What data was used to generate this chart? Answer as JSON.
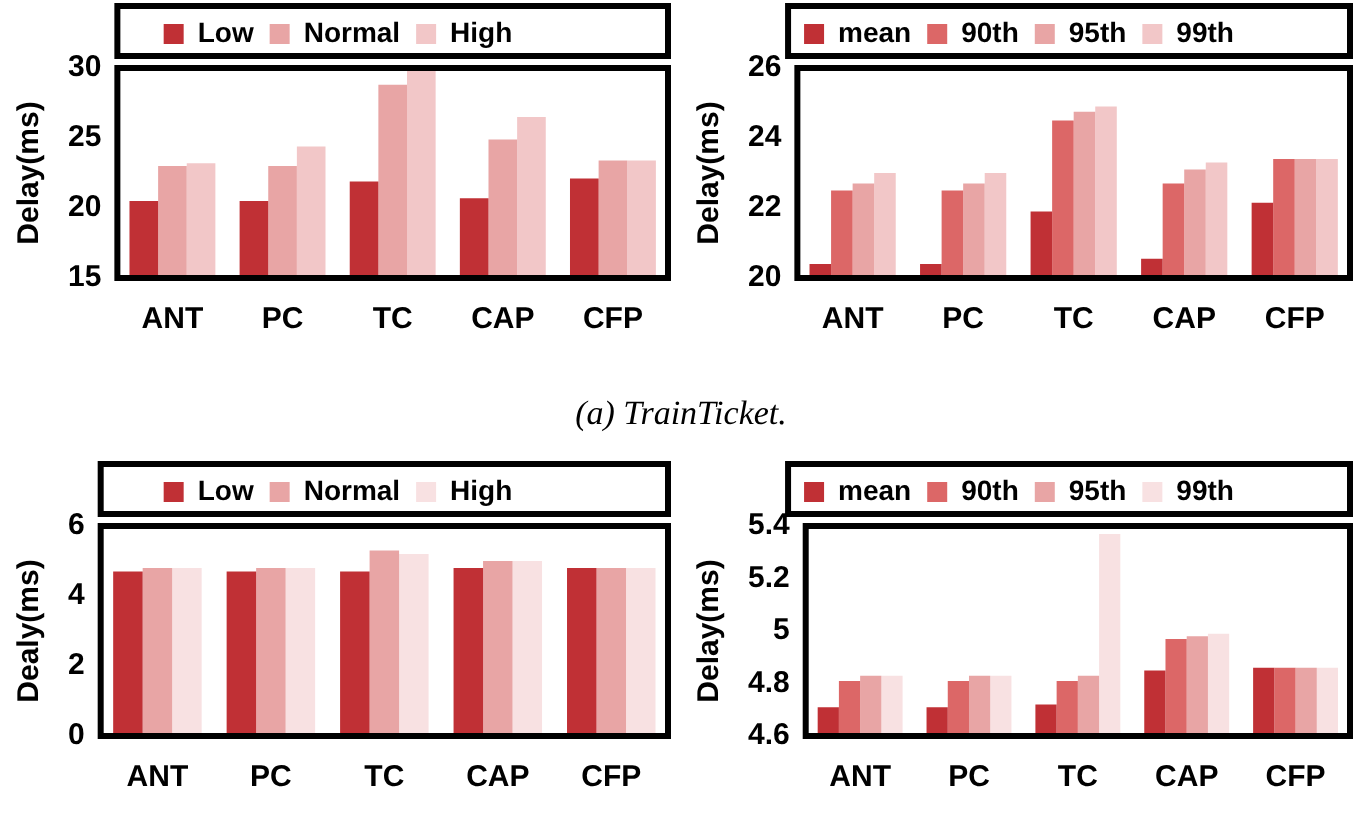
{
  "chart_data": [
    {
      "type": "bar",
      "ylabel": "Delay(ms)",
      "categories": [
        "ANT",
        "PC",
        "TC",
        "CAP",
        "CFP"
      ],
      "legend": "top",
      "ylim": [
        15,
        30
      ],
      "yticks": [
        15,
        20,
        25,
        30
      ],
      "annotations": [
        "(a) TrainTicket."
      ],
      "series": [
        {
          "name": "Low",
          "color": "#c03035",
          "values": [
            20.5,
            20.5,
            21.9,
            20.7,
            22.1
          ]
        },
        {
          "name": "Normal",
          "color": "#e8a5a5",
          "values": [
            23.0,
            23.0,
            28.8,
            24.9,
            23.4
          ]
        },
        {
          "name": "High",
          "color": "#f2c7c8",
          "values": [
            23.2,
            24.4,
            30.0,
            26.5,
            23.4
          ]
        }
      ]
    },
    {
      "type": "bar",
      "ylabel": "Delay(ms)",
      "categories": [
        "ANT",
        "PC",
        "TC",
        "CAP",
        "CFP"
      ],
      "legend": "top",
      "ylim": [
        20,
        26
      ],
      "yticks": [
        20,
        22,
        24,
        26
      ],
      "series": [
        {
          "name": "mean",
          "color": "#c03035",
          "values": [
            20.4,
            20.4,
            21.9,
            20.55,
            22.15
          ]
        },
        {
          "name": "90th",
          "color": "#dc6767",
          "values": [
            22.5,
            22.5,
            24.5,
            22.7,
            23.4
          ]
        },
        {
          "name": "95th",
          "color": "#e8a5a5",
          "values": [
            22.7,
            22.7,
            24.75,
            23.1,
            23.4
          ]
        },
        {
          "name": "99th",
          "color": "#f2c7c8",
          "values": [
            23.0,
            23.0,
            24.9,
            23.3,
            23.4
          ]
        }
      ]
    },
    {
      "type": "bar",
      "ylabel": "Dealy(ms)",
      "categories": [
        "ANT",
        "PC",
        "TC",
        "CAP",
        "CFP"
      ],
      "legend": "top",
      "ylim": [
        0,
        6
      ],
      "yticks": [
        0,
        2,
        4,
        6
      ],
      "series": [
        {
          "name": "Low",
          "color": "#c03035",
          "values": [
            4.7,
            4.7,
            4.7,
            4.8,
            4.8
          ]
        },
        {
          "name": "Normal",
          "color": "#e8a5a5",
          "values": [
            4.8,
            4.8,
            5.3,
            5.0,
            4.8
          ]
        },
        {
          "name": "High",
          "color": "#f8e1e2",
          "values": [
            4.8,
            4.8,
            5.2,
            5.0,
            4.8
          ]
        }
      ]
    },
    {
      "type": "bar",
      "ylabel": "Delay(ms)",
      "categories": [
        "ANT",
        "PC",
        "TC",
        "CAP",
        "CFP"
      ],
      "legend": "top",
      "ylim": [
        4.6,
        5.4
      ],
      "yticks": [
        4.6,
        4.8,
        5,
        5.2,
        5.4
      ],
      "series": [
        {
          "name": "mean",
          "color": "#c03035",
          "values": [
            4.71,
            4.71,
            4.72,
            4.85,
            4.86
          ]
        },
        {
          "name": "90th",
          "color": "#dc6767",
          "values": [
            4.81,
            4.81,
            4.81,
            4.97,
            4.86
          ]
        },
        {
          "name": "95th",
          "color": "#e8a5a5",
          "values": [
            4.83,
            4.83,
            4.83,
            4.98,
            4.86
          ]
        },
        {
          "name": "99th",
          "color": "#f8e1e2",
          "values": [
            4.83,
            4.83,
            5.37,
            4.99,
            4.86
          ]
        }
      ]
    }
  ]
}
